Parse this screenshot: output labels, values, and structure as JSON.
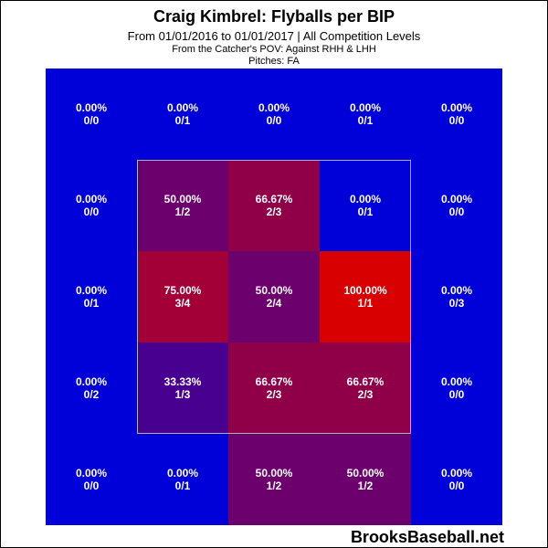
{
  "header": {
    "title": "Craig Kimbrel: Flyballs per BIP",
    "subtitle": "From 01/01/2016 to 01/01/2017 | All Competition Levels",
    "pov": "From the Catcher's POV:  Against RHH & LHH",
    "pitches": "Pitches:  FA"
  },
  "watermark": "BrooksBaseball.net",
  "chart_data": {
    "type": "heatmap",
    "title": "Craig Kimbrel: Flyballs per BIP",
    "grid": [
      [
        {
          "pct": "0.00%",
          "frac": "0/0",
          "value": null
        },
        {
          "pct": "0.00%",
          "frac": "0/1",
          "value": 0
        },
        {
          "pct": "0.00%",
          "frac": "0/0",
          "value": null
        },
        {
          "pct": "0.00%",
          "frac": "0/1",
          "value": 0
        },
        {
          "pct": "0.00%",
          "frac": "0/0",
          "value": null
        }
      ],
      [
        {
          "pct": "0.00%",
          "frac": "0/0",
          "value": null
        },
        {
          "pct": "50.00%",
          "frac": "1/2",
          "value": 50
        },
        {
          "pct": "66.67%",
          "frac": "2/3",
          "value": 66.67
        },
        {
          "pct": "0.00%",
          "frac": "0/1",
          "value": 0
        },
        {
          "pct": "0.00%",
          "frac": "0/0",
          "value": null
        }
      ],
      [
        {
          "pct": "0.00%",
          "frac": "0/1",
          "value": 0
        },
        {
          "pct": "75.00%",
          "frac": "3/4",
          "value": 75
        },
        {
          "pct": "50.00%",
          "frac": "2/4",
          "value": 50
        },
        {
          "pct": "100.00%",
          "frac": "1/1",
          "value": 100
        },
        {
          "pct": "0.00%",
          "frac": "0/3",
          "value": 0
        }
      ],
      [
        {
          "pct": "0.00%",
          "frac": "0/2",
          "value": 0
        },
        {
          "pct": "33.33%",
          "frac": "1/3",
          "value": 33.33
        },
        {
          "pct": "66.67%",
          "frac": "2/3",
          "value": 66.67
        },
        {
          "pct": "66.67%",
          "frac": "2/3",
          "value": 66.67
        },
        {
          "pct": "0.00%",
          "frac": "0/0",
          "value": null
        }
      ],
      [
        {
          "pct": "0.00%",
          "frac": "0/0",
          "value": null
        },
        {
          "pct": "0.00%",
          "frac": "0/1",
          "value": 0
        },
        {
          "pct": "50.00%",
          "frac": "1/2",
          "value": 50
        },
        {
          "pct": "50.00%",
          "frac": "1/2",
          "value": 50
        },
        {
          "pct": "0.00%",
          "frac": "0/0",
          "value": null
        }
      ]
    ],
    "colors": {
      "low": "#0000d8",
      "high": "#d80000"
    }
  }
}
